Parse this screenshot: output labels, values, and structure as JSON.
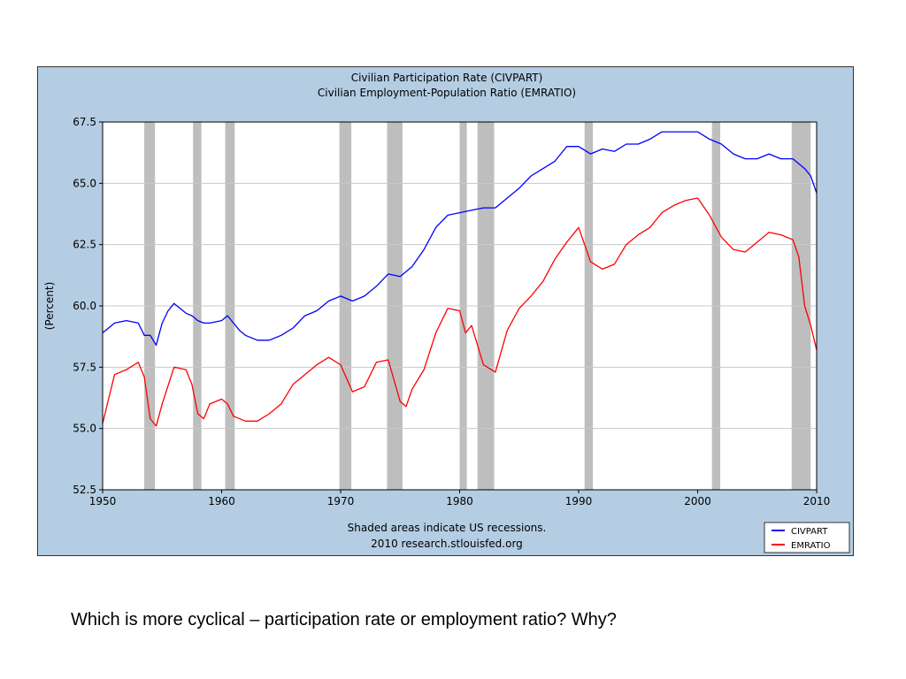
{
  "caption": "Which is more cyclical – participation rate or employment ratio?  Why?",
  "colors": {
    "panel_bg": "#b4cde3",
    "plot_bg": "#ffffff",
    "recession": "#bebebe",
    "grid": "#c8c8c8",
    "civpart": "#0000ff",
    "emratio": "#ff0000"
  },
  "chart_data": {
    "type": "line",
    "title": "Civilian Participation Rate (CIVPART)",
    "subtitle": "Civilian Employment-Population Ratio (EMRATIO)",
    "ylabel": "(Percent)",
    "xlabel": "",
    "footnote_1": "Shaded areas indicate US recessions.",
    "footnote_2": "2010 research.stlouisfed.org",
    "xlim": [
      1950,
      2010
    ],
    "ylim": [
      52.5,
      67.5
    ],
    "x_ticks": [
      "1950",
      "1960",
      "1970",
      "1980",
      "1990",
      "2000",
      "2010"
    ],
    "y_ticks": [
      "67.5",
      "65.0",
      "62.5",
      "60.0",
      "57.5",
      "55.0",
      "52.5"
    ],
    "grid": true,
    "legend_position": "bottom-right",
    "recessions": [
      [
        1953.5,
        1954.4
      ],
      [
        1957.6,
        1958.3
      ],
      [
        1960.3,
        1961.1
      ],
      [
        1969.9,
        1970.9
      ],
      [
        1973.9,
        1975.2
      ],
      [
        1980.0,
        1980.6
      ],
      [
        1981.5,
        1982.9
      ],
      [
        1990.5,
        1991.2
      ],
      [
        2001.2,
        2001.9
      ],
      [
        2007.9,
        2009.5
      ]
    ],
    "series": [
      {
        "name": "CIVPART",
        "x": [
          1950,
          1951,
          1952,
          1953,
          1953.5,
          1954,
          1954.5,
          1955,
          1955.5,
          1956,
          1957,
          1957.5,
          1958,
          1958.5,
          1959,
          1960,
          1960.5,
          1961,
          1961.5,
          1962,
          1963,
          1964,
          1965,
          1966,
          1967,
          1968,
          1969,
          1970,
          1971,
          1972,
          1973,
          1974,
          1975,
          1976,
          1977,
          1978,
          1979,
          1980,
          1981,
          1982,
          1983,
          1984,
          1985,
          1986,
          1987,
          1988,
          1989,
          1990,
          1991,
          1992,
          1993,
          1994,
          1995,
          1996,
          1997,
          1998,
          1999,
          2000,
          2001,
          2002,
          2003,
          2004,
          2005,
          2006,
          2007,
          2008,
          2008.5,
          2009,
          2009.5,
          2010
        ],
        "values": [
          58.9,
          59.3,
          59.4,
          59.3,
          58.8,
          58.8,
          58.4,
          59.3,
          59.8,
          60.1,
          59.7,
          59.6,
          59.4,
          59.3,
          59.3,
          59.4,
          59.6,
          59.3,
          59.0,
          58.8,
          58.6,
          58.6,
          58.8,
          59.1,
          59.6,
          59.8,
          60.2,
          60.4,
          60.2,
          60.4,
          60.8,
          61.3,
          61.2,
          61.6,
          62.3,
          63.2,
          63.7,
          63.8,
          63.9,
          64.0,
          64.0,
          64.4,
          64.8,
          65.3,
          65.6,
          65.9,
          66.5,
          66.5,
          66.2,
          66.4,
          66.3,
          66.6,
          66.6,
          66.8,
          67.1,
          67.1,
          67.1,
          67.1,
          66.8,
          66.6,
          66.2,
          66.0,
          66.0,
          66.2,
          66.0,
          66.0,
          65.8,
          65.6,
          65.3,
          64.6
        ]
      },
      {
        "name": "EMRATIO",
        "x": [
          1950,
          1950.5,
          1951,
          1952,
          1953,
          1953.5,
          1954,
          1954.5,
          1955,
          1956,
          1957,
          1957.5,
          1958,
          1958.5,
          1959,
          1960,
          1960.5,
          1961,
          1962,
          1963,
          1964,
          1965,
          1966,
          1967,
          1968,
          1969,
          1970,
          1971,
          1972,
          1973,
          1974,
          1975,
          1975.5,
          1976,
          1977,
          1978,
          1979,
          1980,
          1980.5,
          1981,
          1982,
          1983,
          1984,
          1985,
          1986,
          1987,
          1988,
          1989,
          1990,
          1991,
          1992,
          1993,
          1994,
          1995,
          1996,
          1997,
          1998,
          1999,
          2000,
          2001,
          2002,
          2003,
          2004,
          2005,
          2006,
          2007,
          2008,
          2008.5,
          2009,
          2009.5,
          2010
        ],
        "values": [
          55.2,
          56.2,
          57.2,
          57.4,
          57.7,
          57.1,
          55.4,
          55.1,
          56.0,
          57.5,
          57.4,
          56.8,
          55.6,
          55.4,
          56.0,
          56.2,
          56.0,
          55.5,
          55.3,
          55.3,
          55.6,
          56.0,
          56.8,
          57.2,
          57.6,
          57.9,
          57.6,
          56.5,
          56.7,
          57.7,
          57.8,
          56.1,
          55.9,
          56.6,
          57.4,
          58.9,
          59.9,
          59.8,
          58.9,
          59.2,
          57.6,
          57.3,
          59.0,
          59.9,
          60.4,
          61.0,
          61.9,
          62.6,
          63.2,
          61.8,
          61.5,
          61.7,
          62.5,
          62.9,
          63.2,
          63.8,
          64.1,
          64.3,
          64.4,
          63.7,
          62.8,
          62.3,
          62.2,
          62.6,
          63.0,
          62.9,
          62.7,
          62.0,
          60.0,
          59.2,
          58.2
        ]
      }
    ]
  }
}
